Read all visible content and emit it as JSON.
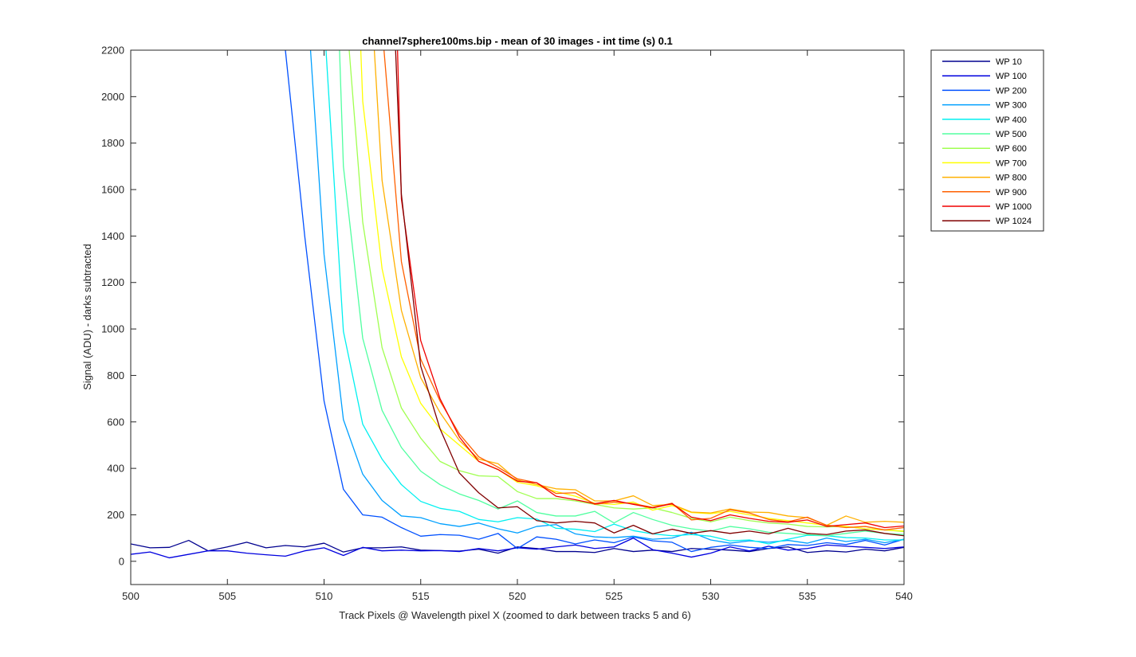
{
  "chart_data": {
    "type": "line",
    "title": "channel7sphere100ms.bip - mean of 30 images - int time (s) 0.1",
    "xlabel": "Track Pixels @ Wavelength pixel X  (zoomed to dark between tracks 5 and 6)",
    "ylabel": "Signal (ADU) - darks subtracted",
    "xlim": [
      500,
      540
    ],
    "ylim": [
      -100,
      2200
    ],
    "xticks": [
      500,
      505,
      510,
      515,
      520,
      525,
      530,
      535,
      540
    ],
    "yticks": [
      0,
      200,
      400,
      600,
      800,
      1000,
      1200,
      1400,
      1600,
      1800,
      2000,
      2200
    ],
    "grid": false,
    "legend_position": "outside top-right",
    "series": [
      {
        "name": "WP 10",
        "color": "#00008F",
        "x": [
          500,
          501,
          502,
          503,
          504,
          505,
          506,
          507,
          508,
          509,
          510,
          511,
          512,
          513,
          514,
          515,
          516,
          517,
          518,
          519,
          520,
          521,
          522,
          523,
          524,
          525,
          526,
          527,
          528,
          529,
          530,
          531,
          532,
          533,
          534,
          535,
          536,
          537,
          538,
          539,
          540
        ],
        "y": [
          75,
          58,
          60,
          90,
          45,
          62,
          82,
          58,
          68,
          62,
          78,
          40,
          58,
          58,
          62,
          48,
          46,
          44,
          52,
          35,
          62,
          55,
          42,
          42,
          38,
          55,
          42,
          48,
          42,
          55,
          52,
          48,
          42,
          55,
          62,
          38,
          45,
          40,
          52,
          45,
          60
        ]
      },
      {
        "name": "WP 100",
        "color": "#0000DF",
        "x": [
          500,
          501,
          502,
          503,
          504,
          505,
          506,
          507,
          508,
          509,
          510,
          511,
          512,
          513,
          514,
          515,
          516,
          517,
          518,
          519,
          520,
          521,
          522,
          523,
          524,
          525,
          526,
          527,
          528,
          529,
          530,
          531,
          532,
          533,
          534,
          535,
          536,
          537,
          538,
          539,
          540
        ],
        "y": [
          30,
          40,
          15,
          30,
          45,
          45,
          35,
          28,
          22,
          45,
          58,
          25,
          60,
          45,
          48,
          45,
          46,
          42,
          55,
          45,
          58,
          52,
          62,
          70,
          55,
          62,
          100,
          50,
          35,
          18,
          35,
          62,
          45,
          65,
          48,
          55,
          70,
          65,
          60,
          55,
          62
        ]
      },
      {
        "name": "WP 200",
        "color": "#0050FF",
        "x": [
          508,
          509,
          510,
          511,
          512,
          513,
          514,
          515,
          516,
          517,
          518,
          519,
          520,
          521,
          522,
          523,
          524,
          525,
          526,
          527,
          528,
          529,
          530,
          531,
          532,
          533,
          534,
          535,
          536,
          537,
          538,
          539,
          540
        ],
        "y": [
          2200,
          1400,
          690,
          310,
          200,
          190,
          145,
          108,
          115,
          112,
          95,
          120,
          55,
          105,
          95,
          75,
          92,
          80,
          105,
          88,
          82,
          42,
          60,
          70,
          60,
          55,
          72,
          68,
          80,
          72,
          90,
          70,
          95
        ]
      },
      {
        "name": "WP 300",
        "color": "#00A0FF",
        "x": [
          509.3,
          510,
          511,
          512,
          513,
          514,
          515,
          516,
          517,
          518,
          519,
          520,
          521,
          522,
          523,
          524,
          525,
          526,
          527,
          528,
          529,
          530,
          531,
          532,
          533,
          534,
          535,
          536,
          537,
          538,
          539,
          540
        ],
        "y": [
          2200,
          1320,
          610,
          375,
          262,
          195,
          188,
          162,
          150,
          165,
          140,
          122,
          150,
          158,
          118,
          105,
          102,
          108,
          95,
          100,
          125,
          92,
          78,
          88,
          82,
          90,
          78,
          100,
          85,
          95,
          80,
          95
        ]
      },
      {
        "name": "WP 400",
        "color": "#00F0F0",
        "x": [
          510.1,
          511,
          512,
          513,
          514,
          515,
          516,
          517,
          518,
          519,
          520,
          521,
          522,
          523,
          524,
          525,
          526,
          527,
          528,
          529,
          530,
          531,
          532,
          533,
          534,
          535,
          536,
          537,
          538,
          539,
          540
        ],
        "y": [
          2200,
          990,
          590,
          440,
          330,
          258,
          228,
          215,
          180,
          170,
          188,
          182,
          142,
          138,
          128,
          160,
          132,
          118,
          110,
          115,
          108,
          88,
          92,
          75,
          95,
          112,
          110,
          102,
          100,
          92,
          92
        ]
      },
      {
        "name": "WP 500",
        "color": "#50FFA0",
        "x": [
          510.8,
          511,
          512,
          513,
          514,
          515,
          516,
          517,
          518,
          519,
          520,
          521,
          522,
          523,
          524,
          525,
          526,
          527,
          528,
          529,
          530,
          531,
          532,
          533,
          534,
          535,
          536,
          537,
          538,
          539,
          540
        ],
        "y": [
          2200,
          1700,
          960,
          650,
          490,
          388,
          330,
          290,
          262,
          225,
          260,
          210,
          195,
          195,
          215,
          165,
          210,
          180,
          155,
          140,
          130,
          150,
          140,
          125,
          120,
          115,
          110,
          120,
          130,
          120,
          115
        ]
      },
      {
        "name": "WP 600",
        "color": "#A0FF50",
        "x": [
          511.3,
          512,
          513,
          514,
          515,
          516,
          517,
          518,
          519,
          520,
          521,
          522,
          523,
          524,
          525,
          526,
          527,
          528,
          529,
          530,
          531,
          532,
          533,
          534,
          535,
          536,
          537,
          538,
          539,
          540
        ],
        "y": [
          2200,
          1460,
          920,
          660,
          530,
          430,
          390,
          368,
          365,
          300,
          270,
          270,
          260,
          245,
          230,
          225,
          230,
          210,
          185,
          170,
          190,
          175,
          165,
          160,
          150,
          148,
          150,
          140,
          135,
          128
        ]
      },
      {
        "name": "WP 700",
        "color": "#FFFF00",
        "x": [
          511.9,
          512,
          513,
          514,
          515,
          516,
          517,
          518,
          519,
          520,
          521,
          522,
          523,
          524,
          525,
          526,
          527,
          528,
          529,
          530,
          531,
          532,
          533,
          534,
          535,
          536,
          537,
          538,
          539,
          540
        ],
        "y": [
          2200,
          1980,
          1260,
          880,
          680,
          570,
          500,
          430,
          395,
          340,
          325,
          300,
          280,
          250,
          245,
          255,
          220,
          240,
          210,
          205,
          215,
          200,
          185,
          175,
          165,
          155,
          150,
          140,
          135,
          130
        ]
      },
      {
        "name": "WP 800",
        "color": "#FFB000",
        "x": [
          512.6,
          513,
          514,
          515,
          516,
          517,
          518,
          519,
          520,
          521,
          522,
          523,
          524,
          525,
          526,
          527,
          528,
          529,
          530,
          531,
          532,
          533,
          534,
          535,
          536,
          537,
          538,
          539,
          540
        ],
        "y": [
          2200,
          1640,
          1080,
          790,
          640,
          520,
          440,
          420,
          350,
          330,
          312,
          308,
          260,
          260,
          282,
          240,
          245,
          212,
          208,
          225,
          212,
          210,
          195,
          188,
          155,
          195,
          168,
          172,
          168
        ]
      },
      {
        "name": "WP 900",
        "color": "#FF6000",
        "x": [
          513.1,
          514,
          515,
          516,
          517,
          518,
          519,
          520,
          521,
          522,
          523,
          524,
          525,
          526,
          527,
          528,
          529,
          530,
          531,
          532,
          533,
          534,
          535,
          536,
          537,
          538,
          539,
          540
        ],
        "y": [
          2200,
          1290,
          870,
          690,
          548,
          450,
          405,
          355,
          338,
          292,
          295,
          245,
          255,
          248,
          232,
          250,
          178,
          185,
          222,
          208,
          180,
          170,
          190,
          155,
          145,
          150,
          135,
          145
        ]
      },
      {
        "name": "WP 1000",
        "color": "#F00000",
        "x": [
          513.8,
          514,
          515,
          516,
          517,
          518,
          519,
          520,
          521,
          522,
          523,
          524,
          525,
          526,
          527,
          528,
          529,
          530,
          531,
          532,
          533,
          534,
          535,
          536,
          537,
          538,
          539,
          540
        ],
        "y": [
          2200,
          1560,
          950,
          700,
          535,
          430,
          395,
          345,
          338,
          280,
          265,
          248,
          262,
          245,
          230,
          248,
          190,
          175,
          200,
          185,
          172,
          168,
          178,
          150,
          158,
          165,
          145,
          152
        ]
      },
      {
        "name": "WP 1024",
        "color": "#800000",
        "x": [
          513.7,
          514,
          515,
          516,
          517,
          518,
          519,
          520,
          521,
          522,
          523,
          524,
          525,
          526,
          527,
          528,
          529,
          530,
          531,
          532,
          533,
          534,
          535,
          536,
          537,
          538,
          539,
          540
        ],
        "y": [
          2200,
          1580,
          840,
          570,
          380,
          295,
          230,
          235,
          175,
          165,
          172,
          165,
          122,
          155,
          118,
          138,
          120,
          132,
          120,
          130,
          118,
          142,
          120,
          115,
          130,
          135,
          120,
          110
        ]
      }
    ]
  }
}
